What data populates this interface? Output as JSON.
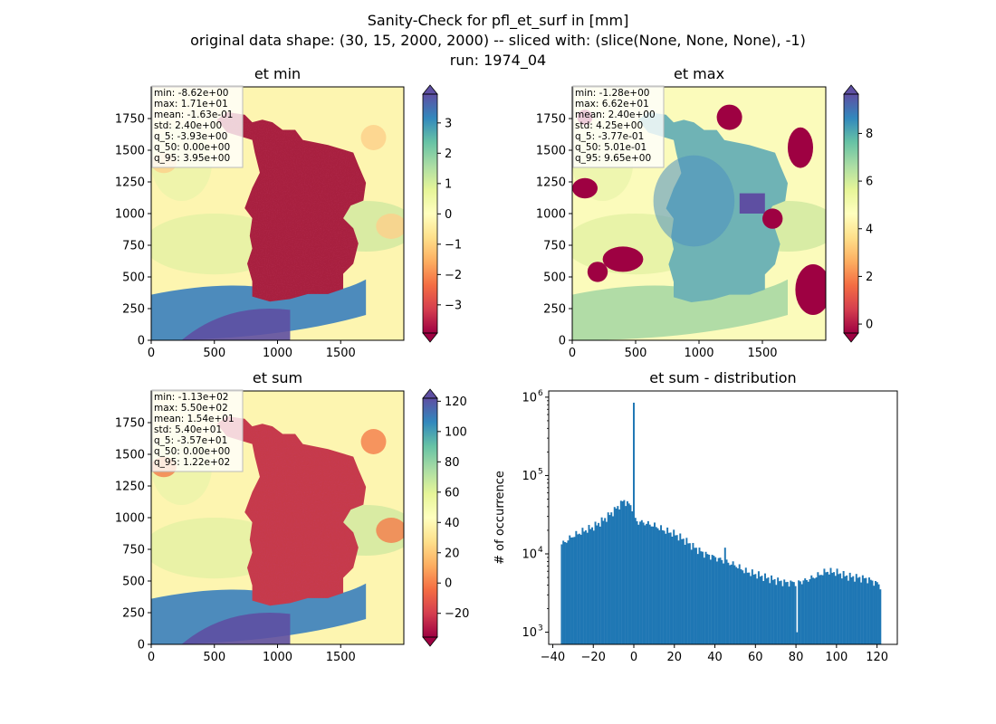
{
  "figure": {
    "title_lines": [
      "Sanity-Check for pfl_et_surf in [mm]",
      "original data shape: (30, 15, 2000, 2000) -- sliced with: (slice(None, None, None), -1)",
      "run: 1974_04"
    ]
  },
  "colors": {
    "bar": "#1f77b4",
    "spectral": [
      "#9e0142",
      "#d53e4f",
      "#f46d43",
      "#fdae61",
      "#fee08b",
      "#ffffbf",
      "#e6f598",
      "#abdda4",
      "#66c2a5",
      "#3288bd",
      "#5e4fa2"
    ]
  },
  "panels": [
    {
      "id": "et-min",
      "title": "et min",
      "xticks": [
        "0",
        "500",
        "1000",
        "1500"
      ],
      "yticks": [
        "0",
        "250",
        "500",
        "750",
        "1000",
        "1250",
        "1500",
        "1750"
      ],
      "stats": [
        "min: -8.62e+00",
        "max: 1.71e+01",
        "mean: -1.63e-01",
        "std: 2.40e+00",
        "q_5: -3.93e+00",
        "q_50: 0.00e+00",
        "q_95: 3.95e+00"
      ],
      "colorbar": {
        "range": [
          -3.93,
          3.95
        ],
        "ticks": [
          "3",
          "2",
          "1",
          "0",
          "−1",
          "−2",
          "−3"
        ],
        "tick_values": [
          3,
          2,
          1,
          0,
          -1,
          -2,
          -3
        ]
      }
    },
    {
      "id": "et-max",
      "title": "et max",
      "xticks": [
        "0",
        "500",
        "1000",
        "1500"
      ],
      "yticks": [
        "0",
        "250",
        "500",
        "750",
        "1000",
        "1250",
        "1500",
        "1750"
      ],
      "stats": [
        "min: -1.28e+00",
        "max: 6.62e+01",
        "mean: 2.40e+00",
        "std: 4.25e+00",
        "q_5: -3.77e-01",
        "q_50: 5.01e-01",
        "q_95: 9.65e+00"
      ],
      "colorbar": {
        "range": [
          -0.377,
          9.65
        ],
        "ticks": [
          "8",
          "6",
          "4",
          "2",
          "0"
        ],
        "tick_values": [
          8,
          6,
          4,
          2,
          0
        ]
      }
    },
    {
      "id": "et-sum",
      "title": "et sum",
      "xticks": [
        "0",
        "500",
        "1000",
        "1500"
      ],
      "yticks": [
        "0",
        "250",
        "500",
        "750",
        "1000",
        "1250",
        "1500",
        "1750"
      ],
      "stats": [
        "min: -1.13e+02",
        "max: 5.50e+02",
        "mean: 1.54e+01",
        "std: 5.40e+01",
        "q_5: -3.57e+01",
        "q_50: 0.00e+00",
        "q_95: 1.22e+02"
      ],
      "colorbar": {
        "range": [
          -35.7,
          122
        ],
        "ticks": [
          "120",
          "100",
          "80",
          "60",
          "40",
          "20",
          "0",
          "−20"
        ],
        "tick_values": [
          120,
          100,
          80,
          60,
          40,
          20,
          0,
          -20
        ]
      }
    }
  ],
  "chart_data": {
    "type": "bar",
    "title": "et sum - distribution",
    "xlabel": "",
    "ylabel": "# of occurrence",
    "yscale": "log",
    "xlim": [
      -42,
      130
    ],
    "ylim": [
      700,
      1200000
    ],
    "xticks": [
      -40,
      -20,
      0,
      20,
      40,
      60,
      80,
      100,
      120
    ],
    "xtick_labels": [
      "−40",
      "−20",
      "0",
      "20",
      "40",
      "60",
      "80",
      "100",
      "120"
    ],
    "ytick_labels": [
      "10",
      "10",
      "10",
      "10"
    ],
    "ytick_exponents": [
      "3",
      "4",
      "5",
      "6"
    ],
    "ytick_values": [
      1000,
      10000,
      100000,
      1000000
    ],
    "bin_start": -36,
    "bin_end": 122,
    "anchors": [
      [
        -36,
        13000
      ],
      [
        -30,
        17000
      ],
      [
        -25,
        19500
      ],
      [
        -20,
        22000
      ],
      [
        -15,
        27000
      ],
      [
        -10,
        35000
      ],
      [
        -5,
        48000
      ],
      [
        -1,
        40000
      ],
      [
        1,
        26000
      ],
      [
        5,
        25000
      ],
      [
        10,
        23000
      ],
      [
        15,
        20000
      ],
      [
        20,
        18000
      ],
      [
        25,
        15000
      ],
      [
        30,
        12000
      ],
      [
        35,
        10000
      ],
      [
        40,
        9000
      ],
      [
        45,
        8000
      ],
      [
        50,
        7200
      ],
      [
        55,
        6000
      ],
      [
        60,
        5500
      ],
      [
        65,
        5000
      ],
      [
        70,
        4600
      ],
      [
        75,
        4300
      ],
      [
        80,
        4300
      ],
      [
        85,
        4600
      ],
      [
        90,
        5200
      ],
      [
        95,
        6000
      ],
      [
        100,
        5800
      ],
      [
        105,
        5200
      ],
      [
        110,
        5000
      ],
      [
        115,
        4800
      ],
      [
        120,
        4200
      ],
      [
        122,
        3800
      ]
    ],
    "spikes": [
      {
        "x": 0,
        "value": 850000
      },
      {
        "x": 80.3,
        "value": 1000
      },
      {
        "x": 45.1,
        "value": 12000
      }
    ]
  }
}
